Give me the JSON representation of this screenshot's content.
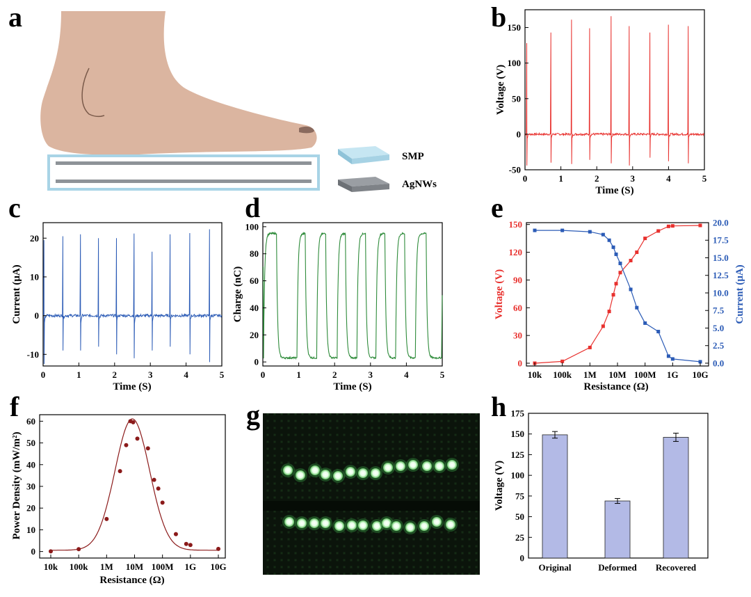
{
  "chart_data": [
    {
      "panel": "a",
      "type": "illustration",
      "subject": "foot stepping on a SMP / AgNWs layered device",
      "legend": [
        "SMP",
        "AgNWs"
      ],
      "colors": {
        "skin": "#dbb5a0",
        "smp": "#b7dcea",
        "agnws": "#8e9398"
      }
    },
    {
      "panel": "b",
      "type": "line",
      "color": "#e8312e",
      "xlabel": "Time (S)",
      "ylabel": "Voltage (V)",
      "xlim": [
        0,
        5
      ],
      "ylim": [
        -50,
        175
      ],
      "xticks": [
        "0",
        "1",
        "2",
        "3",
        "4",
        "5"
      ],
      "yticks": [
        "-50",
        "0",
        "50",
        "100",
        "150"
      ],
      "baseline": 0,
      "peaks": {
        "t": [
          0.05,
          0.72,
          1.3,
          1.8,
          2.4,
          2.9,
          3.48,
          4.0,
          4.55
        ],
        "pos": [
          128,
          143,
          161,
          149,
          166,
          152,
          143,
          154,
          152
        ],
        "neg": [
          -44,
          -40,
          -42,
          -36,
          -41,
          -44,
          -33,
          -38,
          -41
        ]
      }
    },
    {
      "panel": "c",
      "type": "line",
      "color": "#2b5bb6",
      "xlabel": "Time (S)",
      "ylabel": "Current (μA)",
      "xlim": [
        0,
        5
      ],
      "ylim": [
        -13,
        24
      ],
      "xticks": [
        "0",
        "1",
        "2",
        "3",
        "4",
        "5"
      ],
      "yticks": [
        "-10",
        "0",
        "10",
        "20"
      ],
      "baseline": 0,
      "peaks": {
        "t": [
          0.03,
          0.55,
          1.05,
          1.55,
          2.05,
          2.55,
          3.05,
          3.55,
          4.1,
          4.65
        ],
        "pos": [
          19.5,
          20.5,
          21,
          20,
          20,
          21.2,
          16.5,
          21,
          21.3,
          22.3
        ],
        "neg": [
          -12.5,
          -9,
          -9,
          -8,
          -10,
          -11,
          -9,
          -8,
          -10,
          -12
        ]
      }
    },
    {
      "panel": "d",
      "type": "line",
      "color": "#2e8b3a",
      "xlabel": "Time (S)",
      "ylabel": "Charge (nC)",
      "xlim": [
        0,
        5
      ],
      "ylim": [
        -3,
        103
      ],
      "xticks": [
        "0",
        "1",
        "2",
        "3",
        "4",
        "5"
      ],
      "yticks": [
        "0",
        "20",
        "40",
        "60",
        "80",
        "100"
      ],
      "high": 95,
      "low": 3,
      "rises": [
        0.02,
        0.95,
        1.5,
        2.07,
        2.62,
        3.15,
        3.7,
        4.25,
        4.98
      ],
      "falls": [
        0.38,
        1.18,
        1.75,
        2.3,
        2.86,
        3.4,
        3.95,
        4.55
      ]
    },
    {
      "panel": "e",
      "type": "line-dual-axis",
      "xlabel": "Resistance (Ω)",
      "xticks": [
        "10k",
        "100k",
        "1M",
        "10M",
        "100M",
        "1G",
        "10G"
      ],
      "xlog": [
        4,
        10
      ],
      "left": {
        "label": "Voltage (V)",
        "color": "#e8312e",
        "ylim": [
          -3,
          152
        ],
        "yticks": [
          "0",
          "30",
          "60",
          "90",
          "120",
          "150"
        ],
        "x": [
          4,
          5,
          6,
          6.48,
          6.7,
          6.85,
          6.95,
          7.1,
          7.48,
          7.7,
          8.0,
          8.48,
          8.85,
          9.0,
          10
        ],
        "values": [
          0,
          2,
          17,
          40,
          56,
          74,
          86,
          98,
          111,
          120,
          135,
          143,
          148,
          148.5,
          149
        ]
      },
      "right": {
        "label": "Current (μA)",
        "color": "#2b5bb6",
        "ylim": [
          -0.4,
          20
        ],
        "yticks": [
          "0.0",
          "2.5",
          "5.0",
          "7.5",
          "10.0",
          "12.5",
          "15.0",
          "17.5",
          "20.0"
        ],
        "x": [
          4,
          5,
          6,
          6.48,
          6.7,
          6.85,
          6.95,
          7.1,
          7.48,
          7.7,
          8.0,
          8.48,
          8.85,
          9.0,
          10
        ],
        "values": [
          18.9,
          18.9,
          18.7,
          18.3,
          17.5,
          16.5,
          15.5,
          14.2,
          10.5,
          7.9,
          5.7,
          4.5,
          1.0,
          0.6,
          0.2
        ]
      }
    },
    {
      "panel": "f",
      "type": "scatter+line",
      "color": "#8b1a1a",
      "xlabel": "Resistance (Ω)",
      "ylabel": "Power Density (mW/m²)",
      "xticks": [
        "10k",
        "100k",
        "1M",
        "10M",
        "100M",
        "1G",
        "10G"
      ],
      "xlog": [
        4,
        10
      ],
      "ylim": [
        -3,
        63
      ],
      "yticks": [
        "0",
        "10",
        "20",
        "30",
        "40",
        "50",
        "60"
      ],
      "x": [
        4,
        5,
        6,
        6.48,
        6.7,
        6.85,
        6.95,
        7.1,
        7.48,
        7.7,
        7.85,
        8.0,
        8.48,
        8.85,
        9.0,
        10
      ],
      "values": [
        0.1,
        1.1,
        15,
        37,
        49,
        60,
        59.5,
        52,
        47.5,
        33,
        29,
        22.5,
        8,
        3.5,
        3,
        1.2
      ]
    },
    {
      "panel": "g",
      "type": "photo",
      "subject": "two rows of illuminated LEDs on a breadboard"
    },
    {
      "panel": "h",
      "type": "bar",
      "color": "#b3bae6",
      "categories": [
        "Original",
        "Deformed",
        "Recovered"
      ],
      "values": [
        149,
        69,
        146
      ],
      "errors": [
        4,
        3,
        5
      ],
      "ylabel": "Voltage (V)",
      "ylim": [
        0,
        175
      ],
      "yticks": [
        "0",
        "25",
        "50",
        "75",
        "100",
        "125",
        "150",
        "175"
      ]
    }
  ]
}
